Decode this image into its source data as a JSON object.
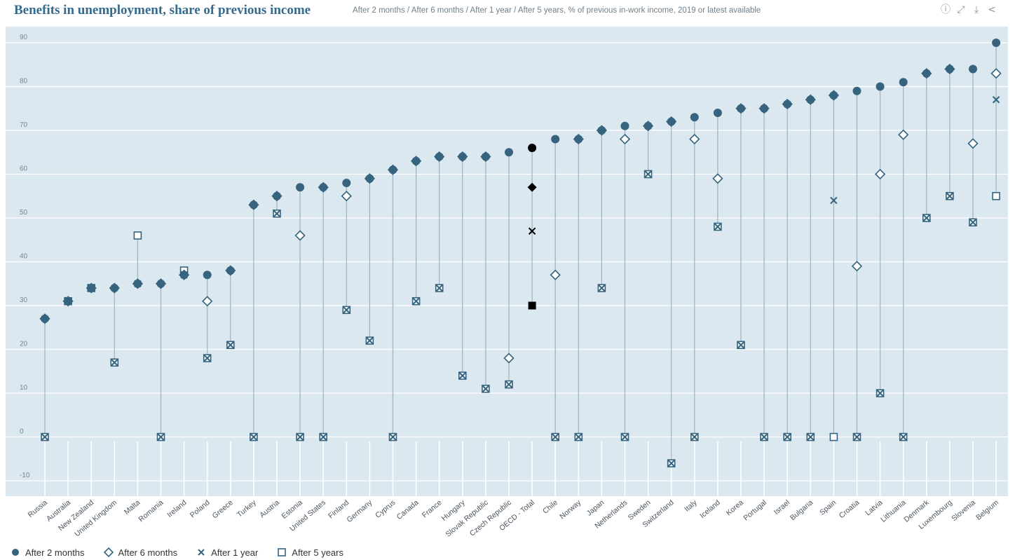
{
  "header": {
    "title": "Benefits in unemployment, share of previous income",
    "subtitle": "After 2 months / After 6 months / After 1 year / After 5 years, % of previous in-work income, 2019 or latest available"
  },
  "toolbar": {
    "icons": [
      "info-icon",
      "fullscreen-icon",
      "download-icon",
      "share-icon"
    ]
  },
  "colors": {
    "plot_bg": "#dbe8f0",
    "series": "#36647f",
    "highlight": "#000000",
    "stem": "#9fb1be",
    "grid": "#ffffff"
  },
  "chart_data": {
    "type": "scatter",
    "ylim": [
      -10,
      90
    ],
    "yticks": [
      -10,
      0,
      10,
      20,
      30,
      40,
      50,
      60,
      70,
      80,
      90
    ],
    "grid": true,
    "legend_position": "bottom-left",
    "highlight_category": "OECD - Total",
    "categories": [
      "Russia",
      "Australia",
      "New Zealand",
      "United Kingdom",
      "Malta",
      "Romania",
      "Ireland",
      "Poland",
      "Greece",
      "Turkey",
      "Austria",
      "Estonia",
      "United States",
      "Finland",
      "Germany",
      "Cyprus",
      "Canada",
      "France",
      "Hungary",
      "Slovak Republic",
      "Czech Republic",
      "OECD - Total",
      "Chile",
      "Norway",
      "Japan",
      "Netherlands",
      "Sweden",
      "Switzerland",
      "Italy",
      "Iceland",
      "Korea",
      "Portugal",
      "Israel",
      "Bulgaria",
      "Spain",
      "Croatia",
      "Latvia",
      "Lithuania",
      "Denmark",
      "Luxembourg",
      "Slovenia",
      "Belgium"
    ],
    "series": [
      {
        "name": "After 2 months",
        "marker": "circle",
        "values": [
          27,
          31,
          34,
          34,
          35,
          35,
          37,
          37,
          38,
          53,
          55,
          57,
          57,
          58,
          59,
          61,
          63,
          64,
          64,
          64,
          65,
          66,
          68,
          68,
          70,
          71,
          71,
          72,
          73,
          74,
          75,
          75,
          76,
          77,
          78,
          79,
          80,
          81,
          83,
          84,
          84,
          90
        ]
      },
      {
        "name": "After 6 months",
        "marker": "diamond",
        "values": [
          27,
          31,
          34,
          34,
          35,
          35,
          37,
          31,
          38,
          53,
          55,
          46,
          57,
          55,
          59,
          61,
          63,
          64,
          64,
          64,
          18,
          57,
          37,
          68,
          70,
          68,
          71,
          72,
          68,
          59,
          75,
          75,
          76,
          77,
          78,
          39,
          60,
          69,
          83,
          84,
          67,
          83
        ]
      },
      {
        "name": "After 1 year",
        "marker": "cross",
        "values": [
          0,
          31,
          34,
          17,
          35,
          0,
          37,
          18,
          21,
          0,
          51,
          0,
          0,
          29,
          22,
          0,
          31,
          34,
          14,
          11,
          12,
          47,
          0,
          0,
          34,
          0,
          60,
          -6,
          0,
          48,
          21,
          0,
          0,
          0,
          54,
          0,
          10,
          0,
          50,
          55,
          49,
          77
        ]
      },
      {
        "name": "After 5 years",
        "marker": "square",
        "values": [
          0,
          31,
          34,
          17,
          46,
          0,
          38,
          18,
          21,
          0,
          51,
          0,
          0,
          29,
          22,
          0,
          31,
          34,
          14,
          11,
          12,
          30,
          0,
          0,
          34,
          0,
          60,
          -6,
          0,
          48,
          21,
          0,
          0,
          0,
          0,
          0,
          10,
          0,
          50,
          55,
          49,
          55
        ]
      }
    ]
  }
}
